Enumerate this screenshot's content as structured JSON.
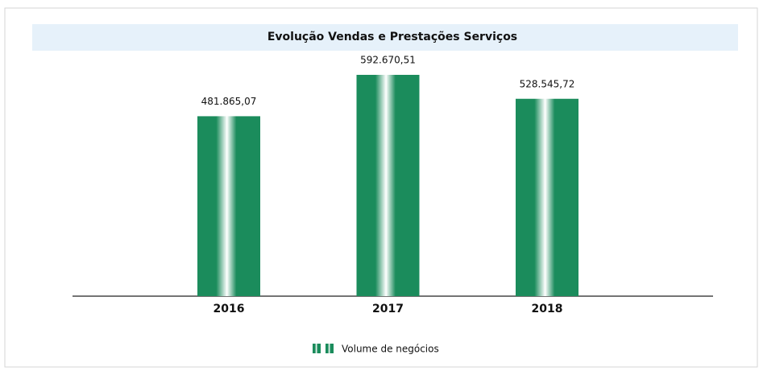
{
  "chart_data": {
    "type": "bar",
    "title": "Evolução Vendas e Prestações Serviços",
    "categories": [
      "2016",
      "2017",
      "2018"
    ],
    "series": [
      {
        "name": "Volume de negócios",
        "color": "#1b8c5c",
        "values": [
          481865.07,
          592670.51,
          528545.72
        ],
        "value_labels": [
          "481.865,07",
          "592.670,51",
          "528.545,72"
        ]
      }
    ]
  }
}
